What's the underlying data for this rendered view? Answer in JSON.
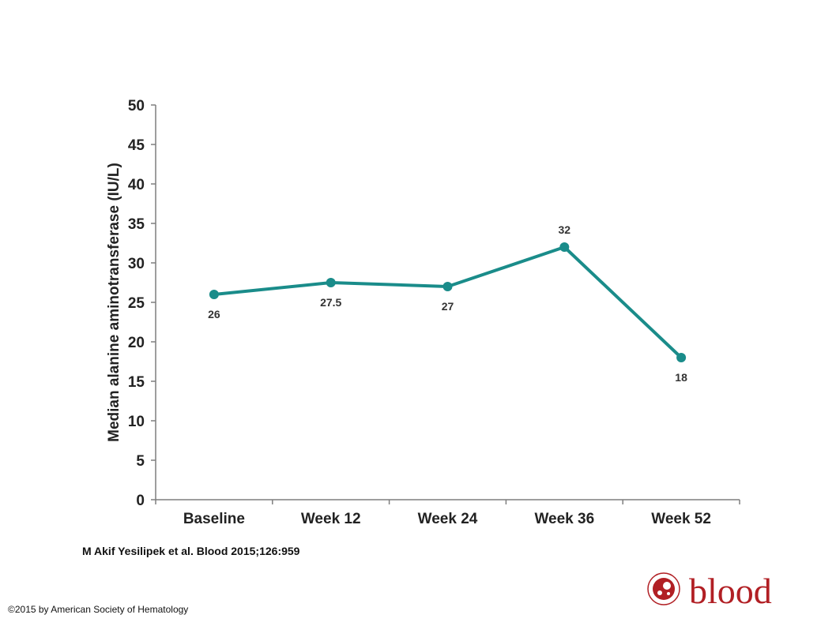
{
  "chart_data": {
    "type": "line",
    "categories": [
      "Baseline",
      "Week 12",
      "Week 24",
      "Week 36",
      "Week 52"
    ],
    "values": [
      26,
      27.5,
      27,
      32,
      18
    ],
    "data_labels": [
      "26",
      "27.5",
      "27",
      "32",
      "18"
    ],
    "title": "",
    "xlabel": "",
    "ylabel": "Median alanine aminotransferase (IU/L)",
    "ylim": [
      0,
      50
    ],
    "yticks": [
      "0",
      "5",
      "10",
      "15",
      "20",
      "25",
      "30",
      "35",
      "40",
      "45",
      "50"
    ],
    "grid": false,
    "legend": "none",
    "series_color": "#1a8c8a"
  },
  "citation": "M Akif Yesilipek et al. Blood 2015;126:959",
  "copyright": "©2015 by American Society of Hematology",
  "logo": {
    "text": "blood",
    "color": "#b11f24"
  }
}
